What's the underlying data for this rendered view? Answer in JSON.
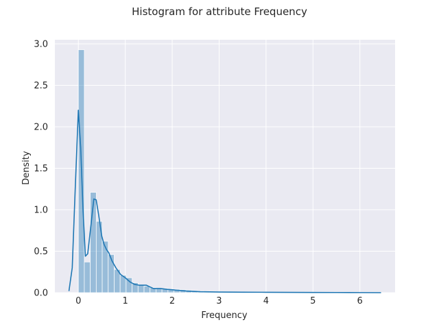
{
  "chart_data": {
    "type": "bar",
    "title": "Histogram for attribute Frequency",
    "xlabel": "Frequency",
    "ylabel": "Density",
    "xlim": [
      -0.5,
      6.75
    ],
    "ylim": [
      0,
      3.05
    ],
    "xticks": [
      "0",
      "1",
      "2",
      "3",
      "4",
      "5",
      "6"
    ],
    "yticks": [
      "0.0",
      "0.5",
      "1.0",
      "1.5",
      "2.0",
      "2.5",
      "3.0"
    ],
    "grid": true,
    "legend": "none",
    "bin_width": 0.1273,
    "bin_start": 0.0,
    "series": [
      {
        "kind": "histogram",
        "values": [
          2.93,
          0.37,
          1.21,
          0.86,
          0.62,
          0.46,
          0.28,
          0.21,
          0.18,
          0.12,
          0.09,
          0.08,
          0.06,
          0.05,
          0.05,
          0.04,
          0.04,
          0.035,
          0.03,
          0.025,
          0.02,
          0.017,
          0.015,
          0.013,
          0.011,
          0.01,
          0.009,
          0.008,
          0.007,
          0.006,
          0.006,
          0.005,
          0.005,
          0.004,
          0.004,
          0.004,
          0.003,
          0.003,
          0.003,
          0.003,
          0.002,
          0.002,
          0.002,
          0.002,
          0.002,
          0.002,
          0.001,
          0.001,
          0.001,
          0.001
        ]
      },
      {
        "kind": "kde",
        "x": [
          -0.2,
          -0.13,
          -0.07,
          0.0,
          0.05,
          0.1,
          0.15,
          0.2,
          0.27,
          0.33,
          0.38,
          0.43,
          0.5,
          0.55,
          0.6,
          0.65,
          0.72,
          0.8,
          0.9,
          1.0,
          1.1,
          1.2,
          1.3,
          1.45,
          1.6,
          1.75,
          1.9,
          2.1,
          2.3,
          2.6,
          3.0,
          3.5,
          4.0,
          4.5,
          5.0,
          5.5,
          6.0,
          6.45
        ],
        "y": [
          0.02,
          0.3,
          1.2,
          2.2,
          1.75,
          1.0,
          0.44,
          0.47,
          0.82,
          1.13,
          1.12,
          0.95,
          0.68,
          0.58,
          0.52,
          0.48,
          0.38,
          0.3,
          0.22,
          0.18,
          0.13,
          0.1,
          0.09,
          0.09,
          0.05,
          0.05,
          0.04,
          0.03,
          0.02,
          0.012,
          0.008,
          0.006,
          0.005,
          0.004,
          0.003,
          0.002,
          0.001,
          0.0
        ]
      }
    ],
    "colors": {
      "plot_bg": "#eaeaf2",
      "grid": "#ffffff",
      "bar_fill": "#1f77b4",
      "bar_opacity": 0.4,
      "kde_line": "#1f77b4",
      "text": "#262626"
    }
  }
}
